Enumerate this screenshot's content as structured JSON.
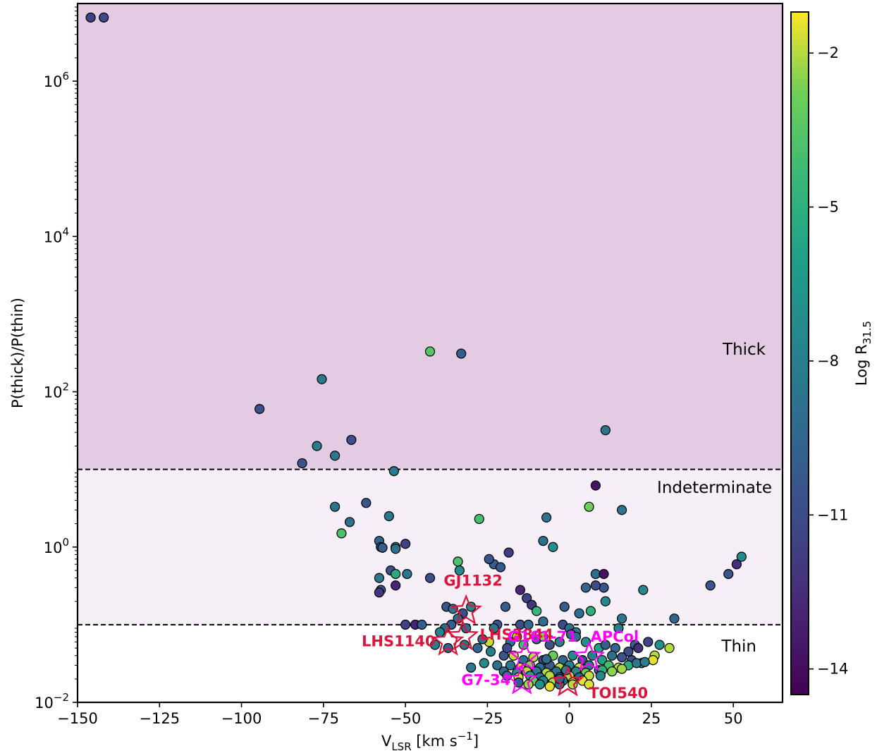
{
  "chart_data": {
    "type": "scatter",
    "xlabel": {
      "main": "V",
      "sub": "LSR",
      "rest": " [km s",
      "sup": "−1",
      "end": "]"
    },
    "ylabel": "P(thick)/P(thin)",
    "xlim": [
      -150,
      65
    ],
    "ylim_log10": [
      -2,
      7
    ],
    "yscale": "log",
    "xticks": [
      {
        "v": -150,
        "label": "−150"
      },
      {
        "v": -125,
        "label": "−125"
      },
      {
        "v": -100,
        "label": "−100"
      },
      {
        "v": -75,
        "label": "−75"
      },
      {
        "v": -50,
        "label": "−50"
      },
      {
        "v": -25,
        "label": "−25"
      },
      {
        "v": 0,
        "label": "0"
      },
      {
        "v": 25,
        "label": "25"
      },
      {
        "v": 50,
        "label": "50"
      }
    ],
    "yticks": [
      {
        "e": -2,
        "base": "10",
        "exp": "−2"
      },
      {
        "e": 0,
        "base": "10",
        "exp": "0"
      },
      {
        "e": 2,
        "base": "10",
        "exp": "2"
      },
      {
        "e": 4,
        "base": "10",
        "exp": "4"
      },
      {
        "e": 6,
        "base": "10",
        "exp": "6"
      }
    ],
    "thresholds": [
      0.1,
      10
    ],
    "regions": [
      {
        "label": "Thick",
        "from": 10,
        "color": "#e3cce3"
      },
      {
        "label": "Indeterminate",
        "from": 0.1,
        "to": 10,
        "color": "#f7eff7"
      },
      {
        "label": "Thin",
        "to": 0.1,
        "color": "#ffffff"
      }
    ],
    "colorbar": {
      "label": {
        "main": "Log R",
        "sub": "31.5"
      },
      "range": [
        -14.5,
        -1.2
      ],
      "ticks": [
        {
          "v": -2,
          "label": "−2"
        },
        {
          "v": -5,
          "label": "−5"
        },
        {
          "v": -8,
          "label": "−8"
        },
        {
          "v": -11,
          "label": "−11"
        },
        {
          "v": -14,
          "label": "−14"
        }
      ],
      "colormap": "viridis"
    },
    "points": [
      [
        -146,
        6600000,
        -11.5
      ],
      [
        -142,
        6600000,
        -11.2
      ],
      [
        -42.5,
        330,
        -3.5
      ],
      [
        -33,
        310,
        -10
      ],
      [
        -75.5,
        145,
        -8.5
      ],
      [
        -94.5,
        60,
        -10.8
      ],
      [
        -66.5,
        24,
        -11
      ],
      [
        -77,
        20,
        -8.3
      ],
      [
        -71.5,
        15,
        -8.6
      ],
      [
        -81.5,
        12,
        -10.5
      ],
      [
        11,
        32,
        -8.7
      ],
      [
        -53.5,
        9.5,
        -8.5
      ],
      [
        8,
        6.2,
        -13.6
      ],
      [
        -62,
        3.7,
        -10.5
      ],
      [
        -71.5,
        3.3,
        -8.7
      ],
      [
        -55,
        2.5,
        -8.5
      ],
      [
        -67,
        2.1,
        -9
      ],
      [
        -69.5,
        1.5,
        -3.8
      ],
      [
        -27.5,
        2.3,
        -4
      ],
      [
        6,
        3.3,
        -2.8
      ],
      [
        16,
        3.0,
        -8.7
      ],
      [
        -7,
        2.4,
        -8.8
      ],
      [
        -8,
        1.2,
        -9
      ],
      [
        -5,
        1.0,
        -7
      ],
      [
        -18.5,
        0.85,
        -11.8
      ],
      [
        -50,
        1.1,
        -11.5
      ],
      [
        -58,
        1.2,
        -9.5
      ],
      [
        -53,
        1.0,
        -7.5
      ],
      [
        -57.5,
        1.0,
        -10.5
      ],
      [
        -53,
        0.95,
        -8.7
      ],
      [
        -57,
        0.98,
        -10
      ],
      [
        -34,
        0.65,
        -3.8
      ],
      [
        -23,
        0.6,
        -10
      ],
      [
        -21,
        0.55,
        -10.2
      ],
      [
        -24.5,
        0.7,
        -10.5
      ],
      [
        -54.5,
        0.5,
        -10.8
      ],
      [
        -58,
        0.4,
        -8.5
      ],
      [
        -53,
        0.45,
        -5.5
      ],
      [
        -49.5,
        0.45,
        -8.5
      ],
      [
        -42.5,
        0.4,
        -10.8
      ],
      [
        -33.5,
        0.5,
        -7.5
      ],
      [
        -53,
        0.32,
        -12.8
      ],
      [
        -57.5,
        0.28,
        -10.5
      ],
      [
        -58,
        0.26,
        -12
      ],
      [
        8,
        0.45,
        -9
      ],
      [
        10.5,
        0.45,
        -13.8
      ],
      [
        10.5,
        0.3,
        -10.5
      ],
      [
        8,
        0.32,
        -11
      ],
      [
        5,
        0.3,
        -9.5
      ],
      [
        22.5,
        0.28,
        -7.5
      ],
      [
        43,
        0.32,
        -10.5
      ],
      [
        48.5,
        0.45,
        -10.5
      ],
      [
        51,
        0.6,
        -12.5
      ],
      [
        52.5,
        0.75,
        -7.5
      ],
      [
        -15,
        0.28,
        -12.8
      ],
      [
        -13,
        0.22,
        -11.5
      ],
      [
        -11.5,
        0.18,
        -12
      ],
      [
        -10,
        0.15,
        -4.5
      ],
      [
        -19.5,
        0.17,
        -10
      ],
      [
        -8,
        0.11,
        -9
      ],
      [
        -1.5,
        0.17,
        -10
      ],
      [
        11,
        0.2,
        -7.5
      ],
      [
        6.5,
        0.15,
        -5
      ],
      [
        3,
        0.14,
        -9
      ],
      [
        16,
        0.12,
        -8.5
      ],
      [
        32,
        0.12,
        -9.5
      ],
      [
        -37.5,
        0.17,
        -10.5
      ],
      [
        -35.5,
        0.16,
        -8.5
      ],
      [
        -30,
        0.17,
        -7.5
      ],
      [
        -32.5,
        0.14,
        -11
      ],
      [
        -34,
        0.12,
        -9
      ],
      [
        -36,
        0.1,
        -10
      ],
      [
        -47,
        0.1,
        -13
      ],
      [
        -50,
        0.1,
        -11.5
      ],
      [
        -45,
        0.1,
        -10
      ],
      [
        -38,
        0.09,
        -9.5
      ],
      [
        -39.5,
        0.08,
        -8
      ],
      [
        -31.5,
        0.09,
        -9
      ],
      [
        -22,
        0.1,
        -10.5
      ],
      [
        -15,
        0.1,
        -11
      ],
      [
        -12.5,
        0.1,
        -9.5
      ],
      [
        -2,
        0.1,
        -11
      ],
      [
        0,
        0.09,
        -9
      ],
      [
        2,
        0.08,
        -8
      ],
      [
        15,
        0.09,
        -8
      ],
      [
        20,
        0.055,
        -10
      ],
      [
        -18,
        0.06,
        -9
      ],
      [
        -14,
        0.055,
        -4
      ],
      [
        -10,
        0.065,
        -9.5
      ],
      [
        -6,
        0.055,
        -10.5
      ],
      [
        -3,
        0.06,
        -8
      ],
      [
        0.5,
        0.075,
        -9
      ],
      [
        5,
        0.06,
        -7
      ],
      [
        9,
        0.05,
        -6
      ],
      [
        11,
        0.055,
        -10
      ],
      [
        14,
        0.05,
        -9.5
      ],
      [
        18,
        0.045,
        -11
      ],
      [
        21,
        0.05,
        -12.5
      ],
      [
        24,
        0.06,
        -11.5
      ],
      [
        26,
        0.04,
        -2
      ],
      [
        27.5,
        0.055,
        -7
      ],
      [
        30.5,
        0.05,
        -2
      ],
      [
        -41,
        0.055,
        -8
      ],
      [
        -37,
        0.05,
        -10
      ],
      [
        -32,
        0.055,
        -8.5
      ],
      [
        -28,
        0.05,
        -9.5
      ],
      [
        -24,
        0.045,
        -8
      ],
      [
        -20,
        0.04,
        -10.5
      ],
      [
        -17,
        0.04,
        -1.8
      ],
      [
        -14,
        0.035,
        -9
      ],
      [
        -11,
        0.038,
        -2
      ],
      [
        -8,
        0.035,
        -11.2
      ],
      [
        -5,
        0.04,
        -3
      ],
      [
        -2,
        0.035,
        -9.5
      ],
      [
        1,
        0.04,
        -7.5
      ],
      [
        4,
        0.035,
        -11
      ],
      [
        7,
        0.04,
        -8
      ],
      [
        10,
        0.035,
        -6
      ],
      [
        13,
        0.04,
        -9
      ],
      [
        16,
        0.038,
        -10.5
      ],
      [
        19,
        0.035,
        -11
      ],
      [
        22,
        0.032,
        -7
      ],
      [
        25.5,
        0.035,
        -1.5
      ],
      [
        -26,
        0.032,
        -7.5
      ],
      [
        -22,
        0.03,
        -9
      ],
      [
        -18,
        0.03,
        -8.5
      ],
      [
        -15,
        0.028,
        -1.5
      ],
      [
        -12,
        0.03,
        -2.5
      ],
      [
        -9,
        0.028,
        -9
      ],
      [
        -6,
        0.03,
        -10
      ],
      [
        -3,
        0.028,
        -2
      ],
      [
        0,
        0.03,
        -8
      ],
      [
        3,
        0.028,
        -1.7
      ],
      [
        6,
        0.03,
        -8.5
      ],
      [
        9,
        0.026,
        -10
      ],
      [
        12,
        0.03,
        -4
      ],
      [
        15,
        0.028,
        -2
      ],
      [
        18,
        0.03,
        -5
      ],
      [
        20.5,
        0.032,
        -8.5
      ],
      [
        23,
        0.033,
        -8
      ],
      [
        -30,
        0.028,
        -8.5
      ],
      [
        -20,
        0.025,
        -9.5
      ],
      [
        -16,
        0.024,
        -7
      ],
      [
        -13,
        0.025,
        -2
      ],
      [
        -10,
        0.025,
        -8.5
      ],
      [
        -7,
        0.024,
        -2
      ],
      [
        -4,
        0.025,
        -9
      ],
      [
        -1,
        0.024,
        -1.5
      ],
      [
        2,
        0.025,
        -7.5
      ],
      [
        5,
        0.024,
        -3
      ],
      [
        10,
        0.026,
        -5
      ],
      [
        13,
        0.025,
        -2.5
      ],
      [
        16,
        0.027,
        -2.2
      ],
      [
        -19,
        0.022,
        -8.5
      ],
      [
        -15.5,
        0.021,
        -1.6
      ],
      [
        -12,
        0.022,
        -6
      ],
      [
        -9,
        0.021,
        -9
      ],
      [
        -6,
        0.022,
        -2
      ],
      [
        -3,
        0.021,
        -8.5
      ],
      [
        0,
        0.022,
        -2
      ],
      [
        3,
        0.021,
        -9.5
      ],
      [
        6,
        0.022,
        -1.8
      ],
      [
        9.5,
        0.022,
        -7.5
      ],
      [
        -11,
        0.019,
        -3
      ],
      [
        -8,
        0.019,
        -8
      ],
      [
        -5,
        0.018,
        -2
      ],
      [
        -2,
        0.019,
        -9
      ],
      [
        1,
        0.018,
        -1.7
      ],
      [
        4,
        0.019,
        -1.5
      ],
      [
        -15.5,
        0.018,
        -10
      ],
      [
        -12.5,
        0.017,
        -2.2
      ],
      [
        -9,
        0.017,
        -7
      ],
      [
        -6,
        0.016,
        -1.5
      ],
      [
        -3,
        0.017,
        -9
      ],
      [
        1,
        0.017,
        -2
      ],
      [
        6,
        0.017,
        -1.6
      ],
      [
        -3,
        0.02,
        -10
      ],
      [
        -1,
        0.026,
        -8
      ],
      [
        -7,
        0.036,
        -9.5
      ],
      [
        -19,
        0.05,
        -11
      ],
      [
        -24.5,
        0.06,
        -1.8
      ],
      [
        -16,
        0.07,
        -1.6
      ],
      [
        -8,
        0.07,
        -2.5
      ],
      [
        2,
        0.07,
        -9
      ],
      [
        -26.5,
        0.065,
        -9
      ],
      [
        -23,
        0.09,
        -8.5
      ]
    ],
    "stars": [
      {
        "name": "GJ1132",
        "x": -31.5,
        "y": 0.15,
        "color": "#dc143c",
        "anchor": "middle",
        "dx": 10,
        "dy": -36
      },
      {
        "name": "LHS3844",
        "x": -32.5,
        "y": 0.07,
        "color": "#dc143c",
        "anchor": "start",
        "dx": 24,
        "dy": 4
      },
      {
        "name": "LHS1140",
        "x": -37,
        "y": 0.06,
        "color": "#dc143c",
        "anchor": "end",
        "dx": -18,
        "dy": 6
      },
      {
        "name": "G161-71",
        "x": -13.5,
        "y": 0.038,
        "color": "#ff00ff",
        "anchor": "end",
        "dx": 74,
        "dy": -22
      },
      {
        "name": "APCol",
        "x": 6,
        "y": 0.038,
        "color": "#ff00ff",
        "anchor": "start",
        "dx": 2,
        "dy": -22
      },
      {
        "name": "G7-34",
        "x": -14.5,
        "y": 0.019,
        "color": "#ff00ff",
        "anchor": "end",
        "dx": -16,
        "dy": 6
      },
      {
        "name": "TOI540",
        "x": -0.5,
        "y": 0.018,
        "color": "#ff00ff",
        "anchor": "middle",
        "dx": 0,
        "dy": 0
      },
      {
        "name": "TOI540",
        "x": -0.5,
        "y": 0.018,
        "color": "#dc143c",
        "anchor": "start",
        "dx": 30,
        "dy": 22
      }
    ]
  }
}
